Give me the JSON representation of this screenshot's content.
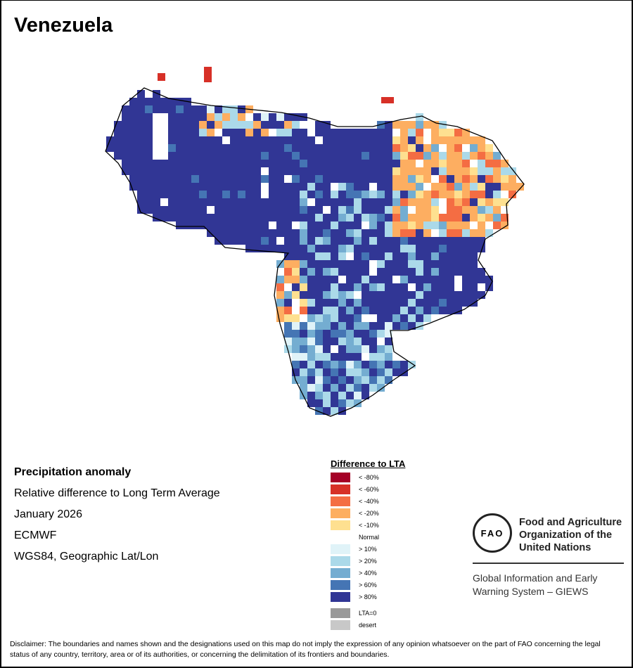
{
  "title": "Venezuela",
  "info": {
    "heading": "Precipitation anomaly",
    "line1": "Relative difference to Long Term Average",
    "line2": "January 2026",
    "line3": "ECMWF",
    "line4": "WGS84, Geographic Lat/Lon"
  },
  "legend": {
    "title": "Difference to LTA",
    "items": [
      {
        "label": "< -80%",
        "color": "#a50026"
      },
      {
        "label": "< -60%",
        "color": "#d73027"
      },
      {
        "label": "< -40%",
        "color": "#f46d43"
      },
      {
        "label": "< -20%",
        "color": "#fdae61"
      },
      {
        "label": "< -10%",
        "color": "#fee090"
      },
      {
        "label": "Normal",
        "color": "#ffffff"
      },
      {
        "label": "> 10%",
        "color": "#e0f3f8"
      },
      {
        "label": "> 20%",
        "color": "#abd9e9"
      },
      {
        "label": "> 40%",
        "color": "#74add1"
      },
      {
        "label": "> 60%",
        "color": "#4575b4"
      },
      {
        "label": "> 80%",
        "color": "#313695"
      }
    ],
    "extra": [
      {
        "label": "LTA=0",
        "color": "#999999"
      },
      {
        "label": "desert",
        "color": "#c8c8c8"
      }
    ]
  },
  "fao": {
    "logo_text": "FAO",
    "org": "Food and Agriculture Organization of the United Nations",
    "giews": "Global Information and Early Warning System – GIEWS"
  },
  "disclaimer": "Disclaimer: The boundaries and names shown and the designations used on this map do not imply the expression of any opinion whatsoever on the part of FAO concerning the legal status of any country, territory, area or of its authorities, or concerning the delimitation of its frontiers and boundaries."
}
